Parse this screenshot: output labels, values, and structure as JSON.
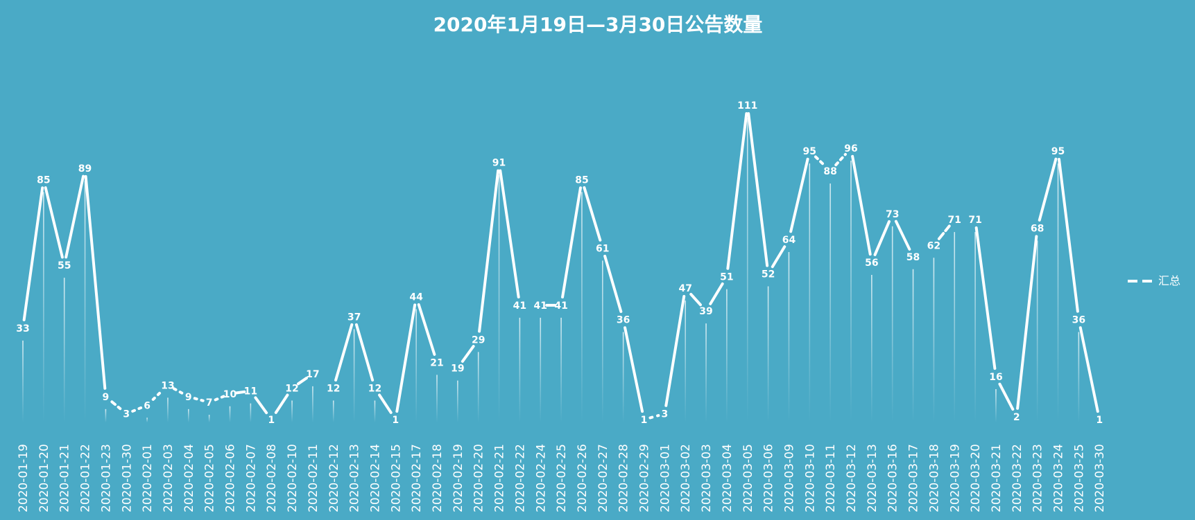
{
  "chart_data": {
    "type": "line",
    "title": "2020年1月19日—3月30日公告数量",
    "legend": {
      "position": "right",
      "label": "汇总"
    },
    "grid": false,
    "ylim": [
      0,
      120
    ],
    "colors": {
      "background": "#4aaac6",
      "line": "#ffffff"
    },
    "categories": [
      "2020-01-19",
      "2020-01-20",
      "2020-01-21",
      "2020-01-22",
      "2020-01-23",
      "2020-01-30",
      "2020-02-01",
      "2020-02-03",
      "2020-02-04",
      "2020-02-05",
      "2020-02-06",
      "2020-02-07",
      "2020-02-08",
      "2020-02-10",
      "2020-02-11",
      "2020-02-12",
      "2020-02-13",
      "2020-02-14",
      "2020-02-15",
      "2020-02-17",
      "2020-02-18",
      "2020-02-19",
      "2020-02-20",
      "2020-02-21",
      "2020-02-22",
      "2020-02-24",
      "2020-02-25",
      "2020-02-26",
      "2020-02-27",
      "2020-02-28",
      "2020-02-29",
      "2020-03-01",
      "2020-03-02",
      "2020-03-03",
      "2020-03-04",
      "2020-03-05",
      "2020-03-06",
      "2020-03-09",
      "2020-03-10",
      "2020-03-11",
      "2020-03-12",
      "2020-03-13",
      "2020-03-16",
      "2020-03-17",
      "2020-03-18",
      "2020-03-19",
      "2020-03-20",
      "2020-03-21",
      "2020-03-22",
      "2020-03-23",
      "2020-03-24",
      "2020-03-25",
      "2020-03-30"
    ],
    "series": [
      {
        "name": "汇总",
        "values": [
          33,
          85,
          55,
          89,
          9,
          3,
          6,
          13,
          9,
          7,
          10,
          11,
          1,
          12,
          17,
          12,
          37,
          12,
          1,
          44,
          21,
          19,
          29,
          91,
          41,
          41,
          41,
          85,
          61,
          36,
          1,
          3,
          47,
          39,
          51,
          111,
          52,
          64,
          95,
          88,
          96,
          56,
          73,
          58,
          62,
          71,
          71,
          16,
          2,
          68,
          95,
          36,
          1
        ]
      }
    ]
  }
}
